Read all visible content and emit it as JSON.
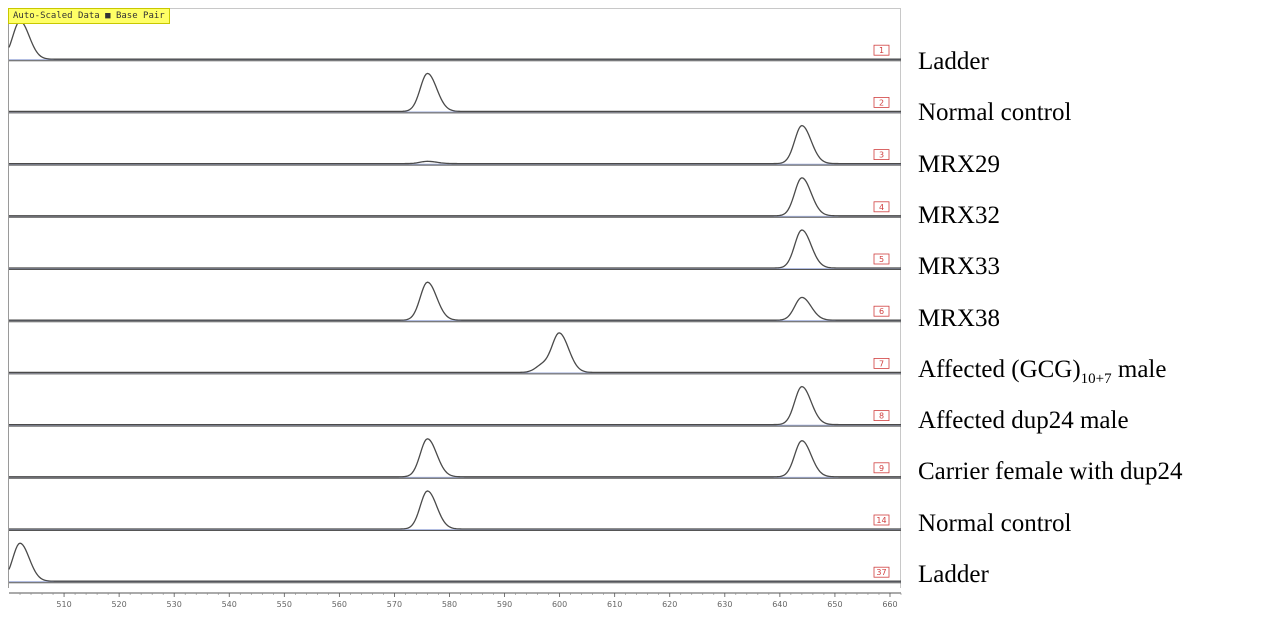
{
  "header_tag": "Auto-Scaled Data ■ Base Pair",
  "chart_data": {
    "type": "line",
    "title": "",
    "xlabel": "",
    "ylabel": "",
    "x_unit": "Base Pair",
    "xlim": [
      500,
      662
    ],
    "x_ticks": [
      510,
      520,
      530,
      540,
      550,
      560,
      570,
      580,
      590,
      600,
      610,
      620,
      630,
      640,
      650,
      660
    ],
    "series": [
      {
        "name": "Ladder",
        "lane_id": "1",
        "peaks": [
          {
            "x": 502.0,
            "height": 1.0
          }
        ]
      },
      {
        "name": "Normal control",
        "lane_id": "2",
        "peaks": [
          {
            "x": 576.0,
            "height": 1.0
          }
        ]
      },
      {
        "name": "MRX29",
        "lane_id": "3",
        "peaks": [
          {
            "x": 576.0,
            "height": 0.06
          },
          {
            "x": 644.0,
            "height": 1.0
          }
        ]
      },
      {
        "name": "MRX32",
        "lane_id": "4",
        "peaks": [
          {
            "x": 644.0,
            "height": 1.0
          }
        ]
      },
      {
        "name": "MRX33",
        "lane_id": "5",
        "peaks": [
          {
            "x": 644.0,
            "height": 1.0
          }
        ]
      },
      {
        "name": "MRX38",
        "lane_id": "6",
        "peaks": [
          {
            "x": 576.0,
            "height": 1.0
          },
          {
            "x": 644.0,
            "height": 0.6
          }
        ]
      },
      {
        "name": "Affected (GCG)10+7 male",
        "lane_id": "7",
        "peaks": [
          {
            "x": 597.0,
            "height": 0.2
          },
          {
            "x": 600.0,
            "height": 1.0
          }
        ]
      },
      {
        "name": "Affected dup24 male",
        "lane_id": "8",
        "peaks": [
          {
            "x": 644.0,
            "height": 1.0
          }
        ]
      },
      {
        "name": "Carrier female with dup24",
        "lane_id": "9",
        "peaks": [
          {
            "x": 576.0,
            "height": 1.0
          },
          {
            "x": 644.0,
            "height": 0.95
          }
        ]
      },
      {
        "name": "Normal control",
        "lane_id": "14",
        "peaks": [
          {
            "x": 576.0,
            "height": 1.0
          }
        ]
      },
      {
        "name": "Ladder",
        "lane_id": "37",
        "peaks": [
          {
            "x": 502.0,
            "height": 1.0
          }
        ]
      }
    ]
  },
  "lane_labels": [
    {
      "text": "Ladder"
    },
    {
      "text": "Normal control"
    },
    {
      "text": "MRX29"
    },
    {
      "text": "MRX32"
    },
    {
      "text": "MRX33"
    },
    {
      "text": "MRX38"
    },
    {
      "text_before": "Affected (GCG)",
      "subscript": "10+7",
      "text_after": " male"
    },
    {
      "text": "Affected dup24 male"
    },
    {
      "text": "Carrier female with dup24"
    },
    {
      "text": "Normal control"
    },
    {
      "text": "Ladder"
    }
  ],
  "colors": {
    "trace": "#4a4a4a",
    "baseline": "#9aa8d8",
    "lane_divider": "#555555",
    "badge": "#d04040",
    "header_bg": "#ffff66"
  }
}
